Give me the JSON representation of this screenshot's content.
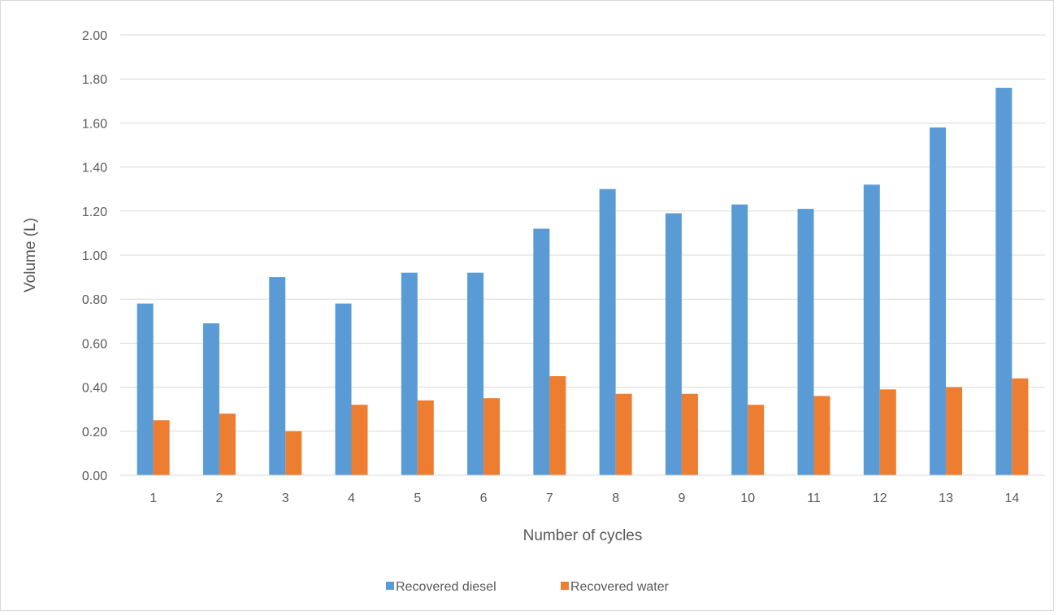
{
  "chart_data": {
    "type": "bar",
    "title": "",
    "xlabel": "Number of cycles",
    "ylabel": "Volume (L)",
    "categories": [
      "1",
      "2",
      "3",
      "4",
      "5",
      "6",
      "7",
      "8",
      "9",
      "10",
      "11",
      "12",
      "13",
      "14"
    ],
    "series": [
      {
        "name": "Recovered diesel",
        "color": "#5b9bd5",
        "values": [
          0.78,
          0.69,
          0.9,
          0.78,
          0.92,
          0.92,
          1.12,
          1.3,
          1.19,
          1.23,
          1.21,
          1.32,
          1.58,
          1.76
        ]
      },
      {
        "name": "Recovered water",
        "color": "#ed7d31",
        "values": [
          0.25,
          0.28,
          0.2,
          0.32,
          0.34,
          0.35,
          0.45,
          0.37,
          0.37,
          0.32,
          0.36,
          0.39,
          0.4,
          0.44
        ]
      }
    ],
    "ylim": [
      0,
      2
    ],
    "yticks": [
      "0.00",
      "0.20",
      "0.40",
      "0.60",
      "0.80",
      "1.00",
      "1.20",
      "1.40",
      "1.60",
      "1.80",
      "2.00"
    ],
    "grid": true,
    "legend_position": "bottom"
  }
}
